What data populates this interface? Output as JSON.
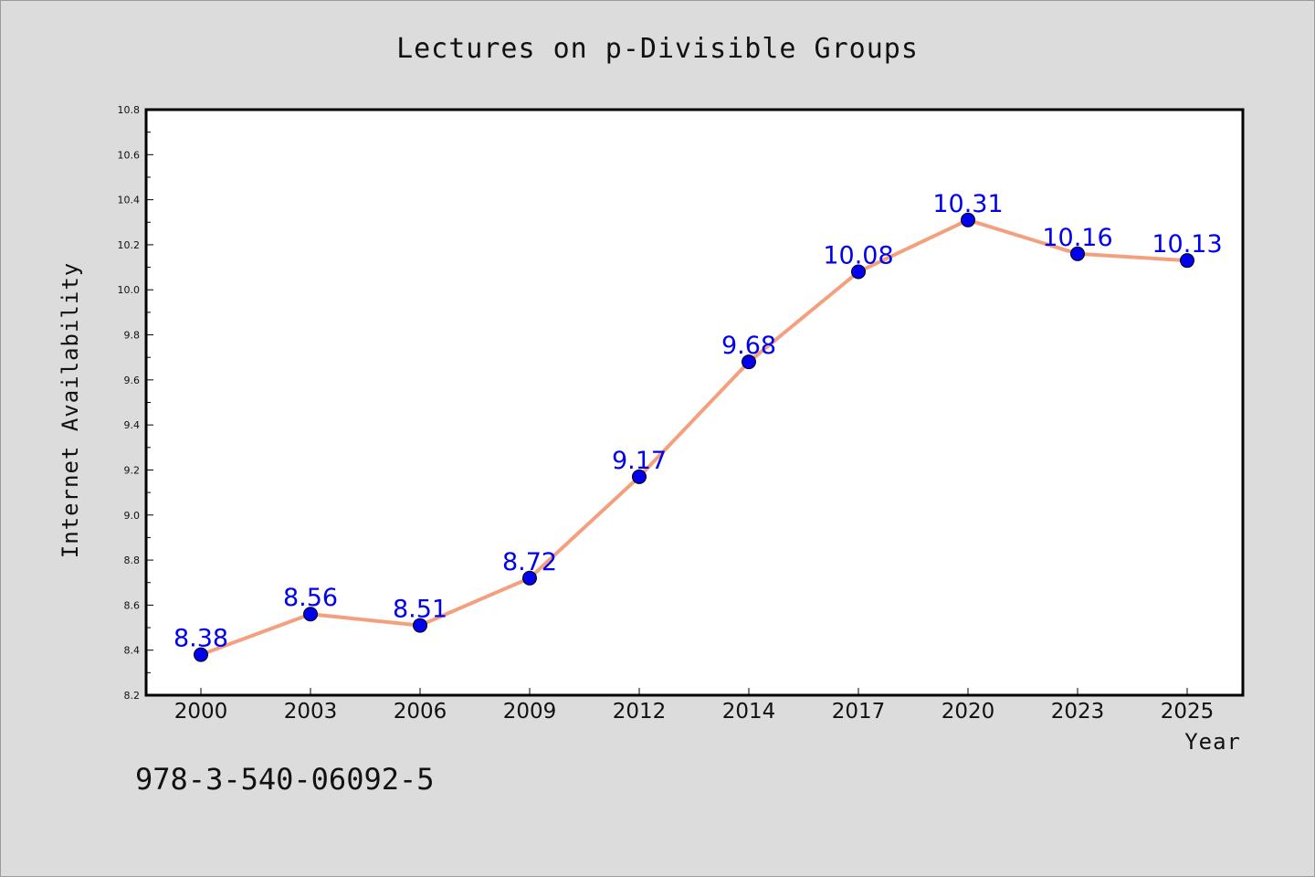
{
  "chart_data": {
    "type": "line",
    "title": "Lectures on p-Divisible Groups",
    "xlabel": "Year",
    "ylabel": "Internet Availability",
    "categories": [
      "2000",
      "2003",
      "2006",
      "2009",
      "2012",
      "2014",
      "2017",
      "2020",
      "2023",
      "2025"
    ],
    "series": [
      {
        "values": [
          8.38,
          8.56,
          8.51,
          8.72,
          9.17,
          9.68,
          10.08,
          10.31,
          10.16,
          10.13
        ],
        "data_labels": [
          "8.38",
          "8.56",
          "8.51",
          "8.72",
          "9.17",
          "9.68",
          "10.08",
          "10.31",
          "10.16",
          "10.13"
        ]
      }
    ],
    "ylim": [
      8.2,
      10.8
    ],
    "yticks": [
      "8.2",
      "8.4",
      "8.6",
      "8.8",
      "9.0",
      "9.2",
      "9.4",
      "9.6",
      "9.8",
      "10.0",
      "10.2",
      "10.4",
      "10.6",
      "10.8"
    ],
    "grid": false,
    "colors": {
      "line": "#f4a07e",
      "marker": "#0000ee",
      "label": "#0000ee",
      "background": "#dcdcdc",
      "plot_background": "#ffffff"
    }
  },
  "annotation": "978-3-540-06092-5"
}
